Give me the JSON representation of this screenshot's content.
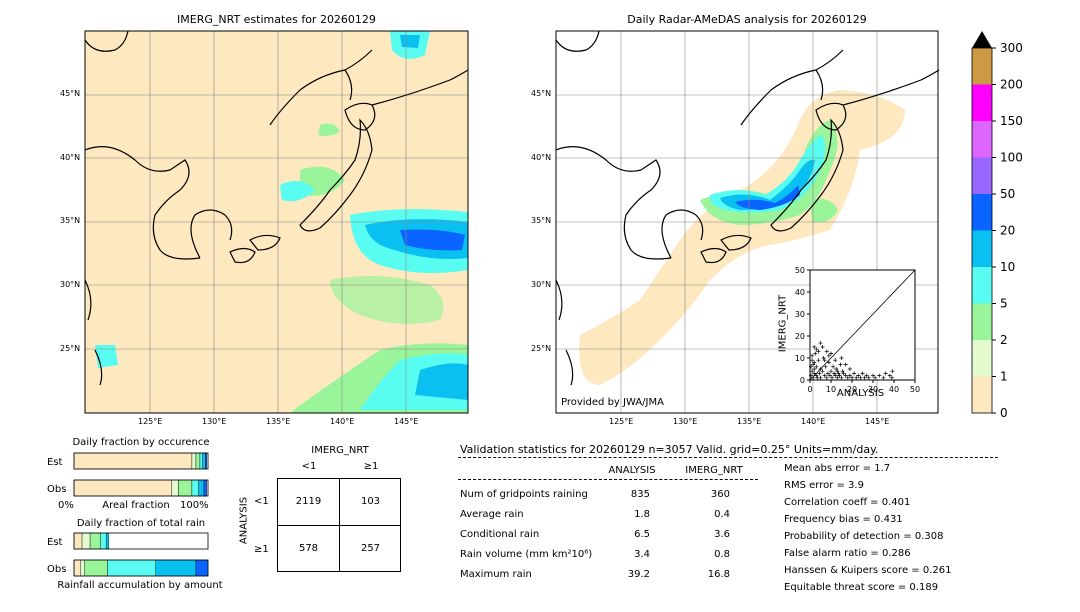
{
  "left_map": {
    "title": "IMERG_NRT estimates for 20260129",
    "lat_labels": [
      "45°N",
      "40°N",
      "35°N",
      "30°N",
      "25°N"
    ],
    "lon_labels": [
      "125°E",
      "130°E",
      "135°E",
      "140°E",
      "145°E"
    ]
  },
  "right_map": {
    "title": "Daily Radar-AMeDAS analysis for 20260129",
    "lat_labels": [
      "45°N",
      "40°N",
      "35°N",
      "30°N",
      "25°N"
    ],
    "lon_labels": [
      "125°E",
      "130°E",
      "135°E",
      "140°E",
      "145°E"
    ],
    "credit": "Provided by JWA/JMA"
  },
  "colorbar": {
    "ticks": [
      "0",
      "1",
      "2",
      "5",
      "10",
      "20",
      "50",
      "100",
      "150",
      "200",
      "300"
    ],
    "colors": [
      "#fde8c0",
      "#e4fbd0",
      "#9af59a",
      "#59fcf0",
      "#0ac0f0",
      "#0a64ff",
      "#9966ff",
      "#dd66ff",
      "#ff00ff",
      "#cc9944"
    ],
    "over_color": "#000000"
  },
  "scatter": {
    "xlabel": "ANALYSIS",
    "ylabel": "IMERG_NRT",
    "ticks": [
      "0",
      "10",
      "20",
      "30",
      "40",
      "50"
    ]
  },
  "chart_data": [
    {
      "type": "scatter",
      "xlabel": "ANALYSIS",
      "ylabel": "IMERG_NRT",
      "xlim": [
        0,
        50
      ],
      "ylim": [
        0,
        50
      ],
      "points": [
        [
          0.5,
          2
        ],
        [
          1,
          4
        ],
        [
          1.5,
          1
        ],
        [
          2,
          8
        ],
        [
          2,
          3
        ],
        [
          2.5,
          12
        ],
        [
          3,
          2
        ],
        [
          3,
          6
        ],
        [
          3.5,
          1
        ],
        [
          4,
          9
        ],
        [
          4.5,
          3
        ],
        [
          5,
          5
        ],
        [
          5,
          1
        ],
        [
          6,
          4
        ],
        [
          6.5,
          10
        ],
        [
          7,
          2
        ],
        [
          7.5,
          6
        ],
        [
          8,
          1
        ],
        [
          8.5,
          3
        ],
        [
          9,
          8
        ],
        [
          9.5,
          2
        ],
        [
          10,
          4
        ],
        [
          10.5,
          1
        ],
        [
          11,
          6
        ],
        [
          11.5,
          3
        ],
        [
          12,
          2
        ],
        [
          12.5,
          5
        ],
        [
          13,
          1
        ],
        [
          13.5,
          3
        ],
        [
          14,
          2
        ],
        [
          14.5,
          7
        ],
        [
          15,
          1
        ],
        [
          15.5,
          4
        ],
        [
          16,
          3
        ],
        [
          17,
          2
        ],
        [
          18,
          1
        ],
        [
          19,
          2
        ],
        [
          20,
          1
        ],
        [
          21,
          3
        ],
        [
          22,
          1
        ],
        [
          23,
          2
        ],
        [
          24,
          1
        ],
        [
          25,
          3
        ],
        [
          26,
          1
        ],
        [
          27,
          2
        ],
        [
          28,
          1
        ],
        [
          30,
          2
        ],
        [
          31,
          1
        ],
        [
          33,
          2
        ],
        [
          35,
          1
        ],
        [
          36,
          3
        ],
        [
          38,
          2
        ],
        [
          39,
          1
        ],
        [
          39.2,
          4
        ],
        [
          3,
          14
        ],
        [
          5,
          16.8
        ],
        [
          8,
          13
        ],
        [
          1,
          11
        ],
        [
          2,
          15
        ],
        [
          4,
          13
        ],
        [
          6,
          15
        ],
        [
          10,
          12
        ],
        [
          12,
          9
        ],
        [
          15,
          10
        ],
        [
          17,
          7
        ],
        [
          19,
          5
        ],
        [
          13,
          4
        ],
        [
          0.5,
          6
        ],
        [
          1,
          9
        ],
        [
          1.5,
          7
        ],
        [
          2,
          5
        ],
        [
          7,
          9
        ],
        [
          9,
          11
        ]
      ]
    },
    {
      "type": "bar",
      "title": "Daily fraction by occurence",
      "categories": [
        "Est",
        "Obs"
      ],
      "xlabel": "Areal fraction",
      "xlim_labels": [
        "0%",
        "100%"
      ],
      "series": [
        {
          "values": [
            0.88,
            0.73
          ]
        },
        {
          "values": [
            0.03,
            0.05
          ]
        },
        {
          "values": [
            0.03,
            0.1
          ]
        },
        {
          "values": [
            0.02,
            0.05
          ]
        },
        {
          "values": [
            0.02,
            0.04
          ]
        },
        {
          "values": [
            0.01,
            0.02
          ]
        }
      ]
    },
    {
      "type": "bar",
      "title": "Daily fraction of total rain",
      "categories": [
        "Est",
        "Obs"
      ],
      "xlabel": "Rainfall accumulation by amount",
      "series": [
        {
          "values": [
            0.06,
            0.05
          ]
        },
        {
          "values": [
            0.06,
            0.03
          ]
        },
        {
          "values": [
            0.08,
            0.17
          ]
        },
        {
          "values": [
            0.04,
            0.36
          ]
        },
        {
          "values": [
            0.02,
            0.3
          ]
        },
        {
          "values": [
            0.0,
            0.09
          ]
        }
      ]
    },
    {
      "type": "table",
      "title": "IMERG_NRT",
      "col_labels": [
        "<1",
        "≥1"
      ],
      "row_title": "ANALYSIS",
      "row_labels": [
        "<1",
        "≥1"
      ],
      "cells": [
        [
          "2119",
          "103"
        ],
        [
          "578",
          "257"
        ]
      ]
    }
  ],
  "validation": {
    "header": "Validation statistics for 20260129  n=3057 Valid. grid=0.25° Units=mm/day.",
    "col_analysis": "ANALYSIS",
    "col_imerg": "IMERG_NRT",
    "rows": [
      {
        "label": "Num of gridpoints raining",
        "a": "835",
        "b": "360"
      },
      {
        "label": "Average rain",
        "a": "1.8",
        "b": "0.4"
      },
      {
        "label": "Conditional rain",
        "a": "6.5",
        "b": "3.6"
      },
      {
        "label": "Rain volume (mm km²10⁶)",
        "a": "3.4",
        "b": "0.8"
      },
      {
        "label": "Maximum rain",
        "a": "39.2",
        "b": "16.8"
      }
    ],
    "scores": [
      "Mean abs error =    1.7",
      "RMS error =    3.9",
      "Correlation coeff =  0.401",
      "Frequency bias =  0.431",
      "Probability of detection =  0.308",
      "False alarm ratio =  0.286",
      "Hanssen & Kuipers score =  0.261",
      "Equitable threat score =  0.189"
    ]
  }
}
